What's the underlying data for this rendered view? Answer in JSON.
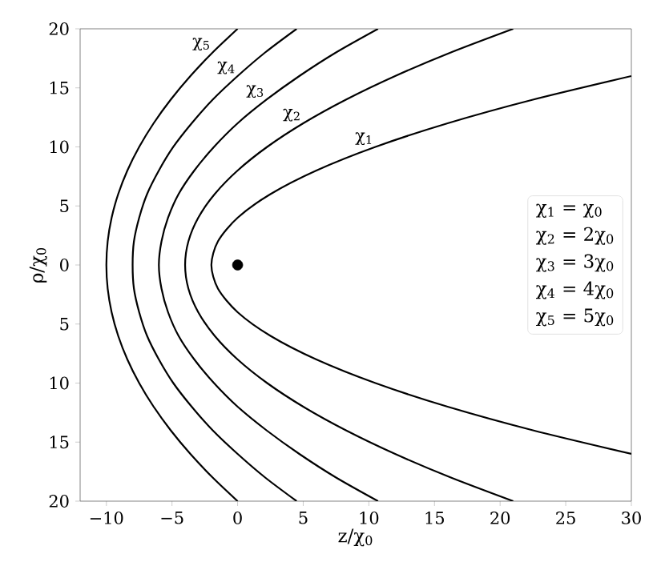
{
  "chart_data": {
    "type": "line",
    "xlabel": "z/χ$_{0}$",
    "ylabel": "ρ/χ$_{0}$",
    "xlim": [
      -12,
      30
    ],
    "ylim": [
      -20,
      20
    ],
    "xticks": [
      {
        "value": -10,
        "label": "−10"
      },
      {
        "value": -5,
        "label": "−5"
      },
      0,
      5,
      10,
      15,
      20,
      25,
      30
    ],
    "yticks": [
      {
        "value": -20,
        "label": "20"
      },
      {
        "value": -15,
        "label": "15"
      },
      {
        "value": -10,
        "label": "10"
      },
      {
        "value": -5,
        "label": "5"
      },
      0,
      5,
      10,
      15,
      20
    ],
    "grid": false,
    "legend": false,
    "marker": "none",
    "line_style": "solid",
    "series": [
      {
        "type": "line",
        "name": "χ$_{1}$",
        "color": "#000000",
        "x": [
          30,
          22.5,
          16,
          10.5,
          6,
          2.5,
          0,
          -1.5,
          -2,
          -1.5,
          0,
          2.5,
          6,
          10.5,
          16,
          22.5,
          30
        ],
        "values": [
          -16,
          -14,
          -12,
          -10,
          -8,
          -6,
          -4,
          -2,
          0,
          2,
          4,
          6,
          8,
          10,
          12,
          14,
          16
        ]
      },
      {
        "type": "line",
        "name": "χ$_{2}$",
        "color": "#000000",
        "x": [
          21,
          16.25,
          12,
          8.25,
          5,
          2.25,
          0,
          -1.75,
          -3,
          -3.75,
          -4,
          -3.75,
          -3,
          -1.75,
          0,
          2.25,
          5,
          8.25,
          12,
          16.25,
          21
        ],
        "values": [
          -20,
          -18,
          -16,
          -14,
          -12,
          -10,
          -8,
          -6,
          -4,
          -2,
          0,
          2,
          4,
          6,
          8,
          10,
          12,
          14,
          16,
          18,
          20
        ]
      },
      {
        "type": "line",
        "name": "χ$_{3}$",
        "color": "#000000",
        "x": [
          10.7,
          7.5,
          4.7,
          2.2,
          0,
          -1.8,
          -3.3,
          -4.5,
          -5.3,
          -5.8,
          -6,
          -5.8,
          -5.3,
          -4.5,
          -3.3,
          -1.8,
          0,
          2.2,
          4.7,
          7.5,
          10.7
        ],
        "values": [
          -20,
          -18,
          -16,
          -14,
          -12,
          -10,
          -8,
          -6,
          -4,
          -2,
          0,
          2,
          4,
          6,
          8,
          10,
          12,
          14,
          16,
          18,
          20
        ]
      },
      {
        "type": "line",
        "name": "χ$_{4}$",
        "color": "#000000",
        "x": [
          4.5,
          2.1,
          0,
          -1.9,
          -3.5,
          -4.9,
          -6,
          -6.9,
          -7.5,
          -7.9,
          -8,
          -7.9,
          -7.5,
          -6.9,
          -6,
          -4.9,
          -3.5,
          -1.9,
          0,
          2.1,
          4.5
        ],
        "values": [
          -20,
          -18,
          -16,
          -14,
          -12,
          -10,
          -8,
          -6,
          -4,
          -2,
          0,
          2,
          4,
          6,
          8,
          10,
          12,
          14,
          16,
          18,
          20
        ]
      },
      {
        "type": "line",
        "name": "χ$_{5}$",
        "color": "#000000",
        "x": [
          0,
          -1.9,
          -3.6,
          -5.1,
          -6.4,
          -7.5,
          -8.4,
          -9.1,
          -9.6,
          -9.9,
          -10,
          -9.9,
          -9.6,
          -9.1,
          -8.4,
          -7.5,
          -6.4,
          -5.1,
          -3.6,
          -1.9,
          0
        ],
        "values": [
          -20,
          -18,
          -16,
          -14,
          -12,
          -10,
          -8,
          -6,
          -4,
          -2,
          0,
          2,
          4,
          6,
          8,
          10,
          12,
          14,
          16,
          18,
          20
        ]
      },
      {
        "type": "scatter",
        "color": "#000000",
        "marker": "circle",
        "x": [
          0
        ],
        "values": [
          0
        ]
      }
    ],
    "annotations": [
      "χ$_{1}$ = χ$_{0}$",
      "χ$_{2}$ = 2χ$_{0}$",
      "χ$_{3}$ = 3χ$_{0}$",
      "χ$_{4}$ = 4χ$_{0}$",
      "χ$_{5}$ = 5χ$_{0}$"
    ]
  }
}
